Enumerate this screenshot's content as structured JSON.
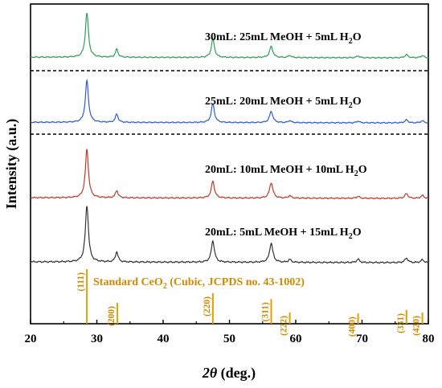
{
  "chart_data": {
    "type": "line",
    "xlabel_symbol": "2θ",
    "xlabel_unit": "(deg.)",
    "ylabel": "Intensity (a.u.)",
    "xlim": [
      20,
      80
    ],
    "xticks": [
      "20",
      "30",
      "40",
      "50",
      "60",
      "70",
      "80"
    ],
    "peaks_2theta": [
      28.5,
      33.0,
      47.5,
      56.3,
      59.1,
      69.4,
      76.7,
      79.1
    ],
    "series": [
      {
        "label_prefix": "30mL: 25mL MeOH + 5mL H",
        "label_sub": "2",
        "label_suffix": "O",
        "color": "#2e9e5b",
        "relative_intensity": [
          1.0,
          0.18,
          0.42,
          0.25,
          0.05,
          0.04,
          0.07,
          0.05
        ]
      },
      {
        "label_prefix": "25mL:  20mL MeOH + 5mL H",
        "label_sub": "2",
        "label_suffix": "O",
        "color": "#2a5bd7",
        "relative_intensity": [
          1.0,
          0.2,
          0.45,
          0.27,
          0.05,
          0.04,
          0.07,
          0.05
        ]
      },
      {
        "label_prefix": "20mL: 10mL MeOH + 10mL H",
        "label_sub": "2",
        "label_suffix": "O",
        "color": "#c0392b",
        "relative_intensity": [
          1.0,
          0.15,
          0.35,
          0.32,
          0.05,
          0.04,
          0.1,
          0.06
        ]
      },
      {
        "label_prefix": "20mL: 5mL MeOH + 15mL H",
        "label_sub": "2",
        "label_suffix": "O",
        "color": "#333333",
        "relative_intensity": [
          1.0,
          0.18,
          0.38,
          0.34,
          0.05,
          0.06,
          0.08,
          0.05
        ]
      }
    ],
    "reference": {
      "title_prefix": "Standard CeO",
      "title_sub": "2",
      "title_suffix": " (Cubic, JCPDS no. 43-1002)",
      "color": "#e0a000",
      "lines": [
        {
          "pos": 28.5,
          "hkl": "(111)",
          "intensity": 1.0
        },
        {
          "pos": 33.1,
          "hkl": "(200)",
          "intensity": 0.3
        },
        {
          "pos": 47.5,
          "hkl": "(220)",
          "intensity": 0.5
        },
        {
          "pos": 56.3,
          "hkl": "(311)",
          "intensity": 0.38
        },
        {
          "pos": 59.1,
          "hkl": "(222)",
          "intensity": 0.1
        },
        {
          "pos": 69.4,
          "hkl": "(400)",
          "intensity": 0.08
        },
        {
          "pos": 76.7,
          "hkl": "(331)",
          "intensity": 0.15
        },
        {
          "pos": 79.1,
          "hkl": "(420)",
          "intensity": 0.1
        }
      ]
    }
  }
}
